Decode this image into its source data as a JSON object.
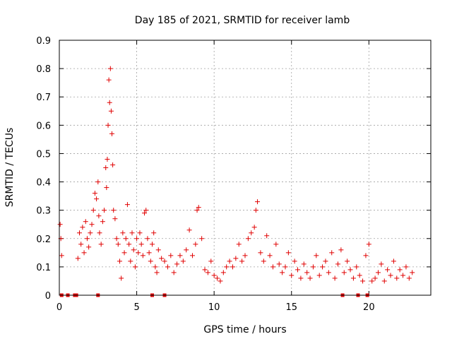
{
  "chart_data": {
    "type": "scatter",
    "title": "Day 185 of 2021, SRMTID for receiver lamb",
    "xlabel": "GPS time / hours",
    "ylabel": "SRMTID / TECUs",
    "xlim": [
      0,
      24
    ],
    "ylim": [
      0,
      0.9
    ],
    "xticks": [
      0,
      5,
      10,
      15,
      20
    ],
    "yticks": [
      0,
      0.1,
      0.2,
      0.3,
      0.4,
      0.5,
      0.6,
      0.7,
      0.8,
      0.9
    ],
    "grid": true,
    "marker": "+",
    "color": "#e00000",
    "series": [
      {
        "name": "SRMTID",
        "x": [
          0.05,
          0.1,
          0.15,
          1.2,
          1.3,
          1.4,
          1.5,
          1.6,
          1.7,
          1.8,
          1.9,
          2.0,
          2.1,
          2.2,
          2.3,
          2.4,
          2.5,
          2.55,
          2.6,
          2.7,
          2.8,
          2.9,
          3.0,
          3.05,
          3.1,
          3.15,
          3.2,
          3.25,
          3.3,
          3.35,
          3.4,
          3.45,
          3.5,
          3.6,
          3.7,
          3.8,
          3.9,
          4.0,
          4.1,
          4.2,
          4.3,
          4.4,
          4.5,
          4.6,
          4.7,
          4.8,
          4.9,
          5.0,
          5.1,
          5.2,
          5.3,
          5.4,
          5.5,
          5.6,
          5.7,
          5.8,
          5.9,
          6.0,
          6.1,
          6.2,
          6.3,
          6.4,
          6.6,
          6.8,
          7.0,
          7.2,
          7.4,
          7.6,
          7.8,
          8.0,
          8.2,
          8.4,
          8.6,
          8.8,
          8.9,
          9.0,
          9.2,
          9.4,
          9.6,
          9.8,
          10.0,
          10.2,
          10.4,
          10.6,
          10.8,
          11.0,
          11.2,
          11.4,
          11.6,
          11.8,
          12.0,
          12.2,
          12.4,
          12.6,
          12.7,
          12.8,
          13.0,
          13.2,
          13.4,
          13.6,
          13.8,
          14.0,
          14.2,
          14.4,
          14.6,
          14.8,
          15.0,
          15.2,
          15.4,
          15.6,
          15.8,
          16.0,
          16.2,
          16.4,
          16.6,
          16.8,
          17.0,
          17.2,
          17.4,
          17.6,
          17.8,
          18.0,
          18.2,
          18.4,
          18.6,
          18.8,
          19.0,
          19.2,
          19.4,
          19.6,
          19.8,
          20.0,
          20.2,
          20.4,
          20.6,
          20.8,
          21.0,
          21.2,
          21.4,
          21.6,
          21.8,
          22.0,
          22.2,
          22.4,
          22.6,
          22.8
        ],
        "y": [
          0.25,
          0.2,
          0.14,
          0.13,
          0.22,
          0.18,
          0.24,
          0.15,
          0.26,
          0.2,
          0.17,
          0.22,
          0.25,
          0.3,
          0.36,
          0.34,
          0.4,
          0.28,
          0.22,
          0.18,
          0.26,
          0.3,
          0.45,
          0.38,
          0.48,
          0.6,
          0.76,
          0.68,
          0.8,
          0.65,
          0.57,
          0.46,
          0.3,
          0.27,
          0.2,
          0.18,
          0.12,
          0.06,
          0.22,
          0.15,
          0.2,
          0.32,
          0.18,
          0.12,
          0.22,
          0.16,
          0.1,
          0.2,
          0.15,
          0.22,
          0.18,
          0.14,
          0.29,
          0.3,
          0.2,
          0.15,
          0.12,
          0.18,
          0.22,
          0.1,
          0.08,
          0.16,
          0.13,
          0.12,
          0.1,
          0.14,
          0.08,
          0.11,
          0.14,
          0.12,
          0.16,
          0.23,
          0.14,
          0.18,
          0.3,
          0.31,
          0.2,
          0.09,
          0.08,
          0.12,
          0.07,
          0.06,
          0.05,
          0.08,
          0.1,
          0.12,
          0.1,
          0.13,
          0.18,
          0.12,
          0.14,
          0.2,
          0.22,
          0.24,
          0.3,
          0.33,
          0.15,
          0.12,
          0.21,
          0.14,
          0.1,
          0.18,
          0.11,
          0.08,
          0.1,
          0.15,
          0.07,
          0.12,
          0.09,
          0.06,
          0.11,
          0.08,
          0.06,
          0.1,
          0.14,
          0.07,
          0.1,
          0.12,
          0.08,
          0.15,
          0.06,
          0.11,
          0.16,
          0.08,
          0.12,
          0.09,
          0.06,
          0.1,
          0.07,
          0.05,
          0.14,
          0.18,
          0.05,
          0.06,
          0.08,
          0.11,
          0.05,
          0.09,
          0.07,
          0.12,
          0.06,
          0.09,
          0.07,
          0.1,
          0.06,
          0.08
        ],
        "gap_markers_x": [
          0.15,
          0.55,
          1.0,
          1.1,
          2.5,
          6.0,
          6.8,
          18.3,
          19.3,
          19.9
        ]
      }
    ]
  }
}
